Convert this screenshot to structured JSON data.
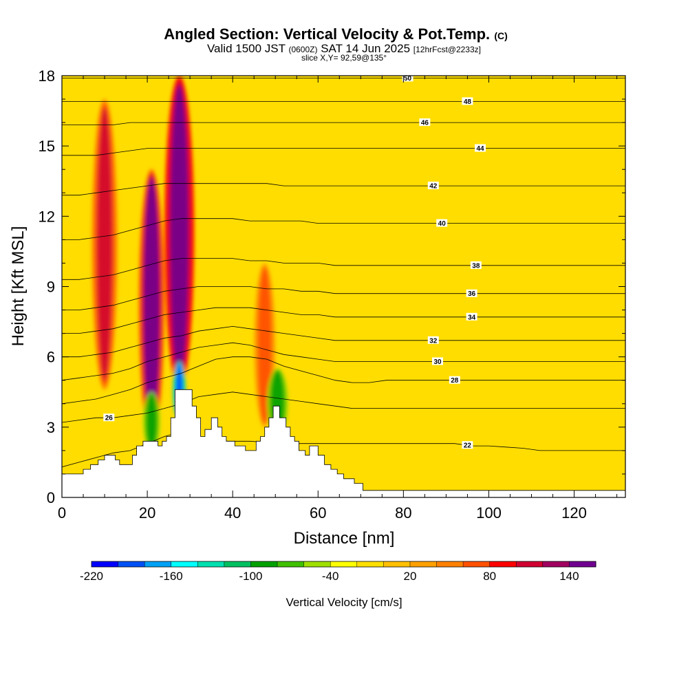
{
  "chart_data": {
    "type": "heatmap",
    "title": "Angled Section: Vertical Velocity & Pot.Temp.",
    "title_units": "(C)",
    "subtitle_main_1": "Valid 1500 JST",
    "subtitle_small_1": "(0600Z)",
    "subtitle_main_2": "SAT 14 Jun 2025",
    "subtitle_small_2": "[12hrFcst@2233z]",
    "subtitle_line2": "slice X,Y= 92,59@135°",
    "xlabel": "Distance [nm]",
    "ylabel": "Height [Kft MSL]",
    "xlim": [
      0,
      132
    ],
    "ylim": [
      0,
      18
    ],
    "x_ticks": [
      0,
      20,
      40,
      60,
      80,
      100,
      120
    ],
    "y_ticks": [
      0,
      3,
      6,
      9,
      12,
      15,
      18
    ],
    "terrain": [
      [
        0,
        0.6
      ],
      [
        0,
        1.0
      ],
      [
        5,
        1.0
      ],
      [
        5,
        1.2
      ],
      [
        6.7,
        1.2
      ],
      [
        6.7,
        1.4
      ],
      [
        8.5,
        1.4
      ],
      [
        8.5,
        1.6
      ],
      [
        10,
        1.6
      ],
      [
        10,
        1.8
      ],
      [
        12.5,
        1.8
      ],
      [
        12.5,
        1.6
      ],
      [
        13.5,
        1.6
      ],
      [
        13.5,
        1.4
      ],
      [
        16.5,
        1.4
      ],
      [
        16.5,
        1.8
      ],
      [
        17.5,
        1.8
      ],
      [
        17.5,
        2.2
      ],
      [
        19,
        2.2
      ],
      [
        19,
        2.4
      ],
      [
        22.5,
        2.4
      ],
      [
        22.5,
        2.2
      ],
      [
        23.5,
        2.2
      ],
      [
        23.5,
        2.4
      ],
      [
        24.5,
        2.4
      ],
      [
        24.5,
        2.6
      ],
      [
        25.5,
        2.6
      ],
      [
        25.5,
        3.4
      ],
      [
        26.5,
        3.4
      ],
      [
        26.5,
        4.6
      ],
      [
        30.5,
        4.6
      ],
      [
        30.5,
        3.9
      ],
      [
        31.5,
        3.9
      ],
      [
        31.5,
        3.4
      ],
      [
        32.5,
        3.4
      ],
      [
        32.5,
        2.6
      ],
      [
        33.5,
        2.6
      ],
      [
        33.5,
        2.9
      ],
      [
        35,
        2.9
      ],
      [
        35,
        3.4
      ],
      [
        36.5,
        3.4
      ],
      [
        36.5,
        3.0
      ],
      [
        37.5,
        3.0
      ],
      [
        37.5,
        2.6
      ],
      [
        38.5,
        2.6
      ],
      [
        38.5,
        2.4
      ],
      [
        40.5,
        2.4
      ],
      [
        40.5,
        2.2
      ],
      [
        43,
        2.2
      ],
      [
        43,
        2.0
      ],
      [
        45.5,
        2.0
      ],
      [
        45.5,
        2.4
      ],
      [
        46.5,
        2.4
      ],
      [
        46.5,
        2.6
      ],
      [
        47.5,
        2.6
      ],
      [
        47.5,
        3.0
      ],
      [
        48.5,
        3.0
      ],
      [
        48.5,
        3.4
      ],
      [
        49.5,
        3.4
      ],
      [
        49.5,
        3.9
      ],
      [
        51,
        3.9
      ],
      [
        51,
        3.4
      ],
      [
        52.5,
        3.4
      ],
      [
        52.5,
        3.0
      ],
      [
        53.5,
        3.0
      ],
      [
        53.5,
        2.6
      ],
      [
        54.5,
        2.6
      ],
      [
        54.5,
        2.4
      ],
      [
        55.5,
        2.4
      ],
      [
        55.5,
        2.0
      ],
      [
        57,
        2.0
      ],
      [
        57,
        1.8
      ],
      [
        58,
        1.8
      ],
      [
        58,
        2.2
      ],
      [
        60,
        2.2
      ],
      [
        60,
        1.8
      ],
      [
        61.5,
        1.8
      ],
      [
        61.5,
        1.4
      ],
      [
        63,
        1.4
      ],
      [
        63,
        1.2
      ],
      [
        64.5,
        1.2
      ],
      [
        64.5,
        1.0
      ],
      [
        66,
        1.0
      ],
      [
        66,
        0.8
      ],
      [
        68.5,
        0.8
      ],
      [
        68.5,
        0.6
      ],
      [
        70.5,
        0.6
      ],
      [
        70.5,
        0.3
      ],
      [
        132,
        0.3
      ],
      [
        132,
        0
      ],
      [
        0,
        0
      ]
    ],
    "isentropes": [
      {
        "value": 22,
        "y": [
          1.3,
          1.5,
          1.7,
          1.9,
          2.0,
          2.3,
          2.6,
          2.8,
          2.5,
          2.4,
          2.4,
          2.4,
          2.35,
          2.3,
          2.3,
          2.3,
          2.3,
          2.3,
          2.3,
          2.3,
          2.3,
          2.3,
          2.3,
          2.3,
          2.2,
          2.2,
          2.15,
          2.1,
          2.0,
          2.0,
          2.0,
          2.0,
          2.0,
          2.0
        ],
        "label_at_x": 95
      },
      {
        "value": 26,
        "y": [
          3.2,
          3.3,
          3.4,
          3.4,
          3.5,
          3.6,
          3.8,
          4.0,
          4.3,
          4.4,
          4.5,
          4.4,
          4.3,
          4.2,
          4.1,
          4.0,
          3.9,
          3.8,
          3.8,
          3.8,
          3.8,
          3.8,
          3.8,
          3.8,
          3.8,
          3.8,
          3.8,
          3.8,
          3.8,
          3.8,
          3.8,
          3.8,
          3.8,
          3.8
        ],
        "label_at_x": 11
      },
      {
        "value": 28,
        "y": [
          4.0,
          4.1,
          4.2,
          4.4,
          4.6,
          4.9,
          5.1,
          5.3,
          5.6,
          5.9,
          6.0,
          6.0,
          5.9,
          5.6,
          5.4,
          5.2,
          5.0,
          4.9,
          4.9,
          5.0,
          5.0,
          5.0,
          5.0,
          5.0,
          5.0,
          5.0,
          5.0,
          5.0,
          5.0,
          5.0,
          5.0,
          5.0,
          5.0,
          5.0
        ],
        "label_at_x": 92
      },
      {
        "value": 30,
        "y": [
          5.0,
          5.1,
          5.2,
          5.3,
          5.5,
          5.8,
          6.0,
          6.2,
          6.4,
          6.5,
          6.6,
          6.5,
          6.3,
          6.1,
          6.0,
          5.9,
          5.8,
          5.8,
          5.8,
          5.8,
          5.8,
          5.8,
          5.8,
          5.8,
          5.8,
          5.8,
          5.8,
          5.8,
          5.8,
          5.8,
          5.8,
          5.8,
          5.8,
          5.8
        ],
        "label_at_x": 88
      },
      {
        "value": 32,
        "y": [
          6.0,
          6.0,
          6.1,
          6.2,
          6.4,
          6.6,
          6.8,
          6.9,
          7.1,
          7.2,
          7.3,
          7.2,
          7.1,
          7.0,
          6.9,
          6.8,
          6.7,
          6.7,
          6.7,
          6.7,
          6.7,
          6.7,
          6.7,
          6.7,
          6.7,
          6.7,
          6.7,
          6.7,
          6.7,
          6.7,
          6.7,
          6.7,
          6.7,
          6.7
        ],
        "label_at_x": 87
      },
      {
        "value": 34,
        "y": [
          7.0,
          7.0,
          7.1,
          7.2,
          7.4,
          7.6,
          7.8,
          7.9,
          8.0,
          8.1,
          8.1,
          8.1,
          8.0,
          7.9,
          7.8,
          7.8,
          7.7,
          7.7,
          7.7,
          7.7,
          7.7,
          7.7,
          7.7,
          7.7,
          7.7,
          7.7,
          7.7,
          7.7,
          7.7,
          7.7,
          7.7,
          7.7,
          7.7,
          7.7
        ],
        "label_at_x": 96
      },
      {
        "value": 36,
        "y": [
          8.0,
          8.0,
          8.1,
          8.2,
          8.4,
          8.6,
          8.8,
          8.9,
          9.0,
          9.0,
          9.0,
          9.0,
          8.9,
          8.9,
          8.8,
          8.8,
          8.7,
          8.7,
          8.7,
          8.7,
          8.7,
          8.7,
          8.7,
          8.7,
          8.7,
          8.7,
          8.7,
          8.7,
          8.7,
          8.7,
          8.7,
          8.7,
          8.7,
          8.7
        ],
        "label_at_x": 96
      },
      {
        "value": 38,
        "y": [
          9.3,
          9.3,
          9.4,
          9.5,
          9.7,
          9.9,
          10.1,
          10.2,
          10.2,
          10.2,
          10.2,
          10.1,
          10.1,
          10.0,
          10.0,
          10.0,
          9.9,
          9.9,
          9.9,
          9.9,
          9.9,
          9.9,
          9.9,
          9.9,
          9.9,
          9.9,
          9.9,
          9.9,
          9.9,
          9.9,
          9.9,
          9.9,
          9.9,
          9.9
        ],
        "label_at_x": 97
      },
      {
        "value": 40,
        "y": [
          11.0,
          11.0,
          11.1,
          11.2,
          11.4,
          11.6,
          11.8,
          11.9,
          11.9,
          11.9,
          11.9,
          11.8,
          11.8,
          11.8,
          11.8,
          11.7,
          11.7,
          11.7,
          11.7,
          11.7,
          11.7,
          11.7,
          11.7,
          11.7,
          11.7,
          11.7,
          11.7,
          11.7,
          11.7,
          11.7,
          11.7,
          11.7,
          11.7,
          11.7
        ],
        "label_at_x": 89
      },
      {
        "value": 42,
        "y": [
          12.9,
          12.9,
          13.0,
          13.1,
          13.2,
          13.3,
          13.4,
          13.4,
          13.4,
          13.4,
          13.4,
          13.4,
          13.4,
          13.3,
          13.3,
          13.3,
          13.3,
          13.3,
          13.3,
          13.3,
          13.3,
          13.3,
          13.3,
          13.3,
          13.3,
          13.3,
          13.3,
          13.3,
          13.3,
          13.3,
          13.3,
          13.3,
          13.3,
          13.3
        ],
        "label_at_x": 87
      },
      {
        "value": 44,
        "y": [
          14.6,
          14.6,
          14.6,
          14.7,
          14.8,
          14.9,
          14.9,
          14.9,
          14.9,
          14.9,
          14.9,
          14.9,
          14.9,
          14.9,
          14.9,
          14.9,
          14.9,
          14.9,
          14.9,
          14.9,
          14.9,
          14.9,
          14.9,
          14.9,
          14.9,
          14.9,
          14.9,
          14.9,
          14.9,
          14.9,
          14.9,
          14.9,
          14.9,
          14.9
        ],
        "label_at_x": 98
      },
      {
        "value": 46,
        "y": [
          15.9,
          15.9,
          15.9,
          15.9,
          16.0,
          16.0,
          16.0,
          16.0,
          16.0,
          16.0,
          16.0,
          16.0,
          16.0,
          16.0,
          16.0,
          16.0,
          16.0,
          16.0,
          16.0,
          16.0,
          16.0,
          16.0,
          16.0,
          16.0,
          16.0,
          16.0,
          16.0,
          16.0,
          16.0,
          16.0,
          16.0,
          16.0,
          16.0,
          16.0
        ],
        "label_at_x": 85
      },
      {
        "value": 48,
        "y": [
          16.9,
          16.9,
          16.9,
          16.9,
          16.9,
          16.9,
          16.9,
          16.9,
          16.9,
          16.9,
          16.9,
          16.9,
          16.9,
          16.9,
          16.9,
          16.9,
          16.9,
          16.9,
          16.9,
          16.9,
          16.9,
          16.9,
          16.9,
          16.9,
          16.9,
          16.9,
          16.9,
          16.9,
          16.9,
          16.9,
          16.9,
          16.9,
          16.9,
          16.9
        ],
        "label_at_x": 95
      },
      {
        "value": 50,
        "y": [
          17.9,
          17.9,
          17.9,
          17.9,
          17.9,
          17.9,
          17.9,
          17.9,
          17.9,
          17.9,
          17.9,
          17.9,
          17.9,
          17.9,
          17.9,
          17.9,
          17.9,
          17.9,
          17.9,
          17.9,
          17.9,
          17.9,
          17.9,
          17.9,
          17.9,
          17.9,
          17.9,
          17.9,
          17.9,
          17.9,
          17.9,
          17.9,
          17.9,
          17.9
        ],
        "label_at_x": 81
      }
    ],
    "isentrope_x": [
      0,
      4,
      8,
      12,
      16,
      20,
      24,
      28,
      32,
      36,
      40,
      44,
      48,
      52,
      56,
      60,
      64,
      68,
      72,
      76,
      80,
      84,
      88,
      92,
      96,
      100,
      104,
      108,
      112,
      116,
      120,
      124,
      128,
      132
    ],
    "velocity_features": [
      {
        "kind": "updraft",
        "x": [
          7,
          13
        ],
        "y": [
          4.6,
          17.0
        ],
        "peak_cm_s": 100
      },
      {
        "kind": "updraft",
        "x": [
          18,
          24
        ],
        "y": [
          2.5,
          14.0
        ],
        "peak_cm_s": 140
      },
      {
        "kind": "updraft",
        "x": [
          24,
          31
        ],
        "y": [
          4.6,
          18.0
        ],
        "peak_cm_s": 150
      },
      {
        "kind": "downdraft",
        "x": [
          19,
          23
        ],
        "y": [
          2.0,
          4.5
        ],
        "peak_cm_s": -100
      },
      {
        "kind": "downdraft",
        "x": [
          26,
          29
        ],
        "y": [
          3.3,
          5.8
        ],
        "peak_cm_s": -200
      },
      {
        "kind": "updraft",
        "x": [
          45,
          50
        ],
        "y": [
          3.0,
          10.0
        ],
        "peak_cm_s": 70
      },
      {
        "kind": "downdraft",
        "x": [
          48,
          53
        ],
        "y": [
          2.6,
          5.5
        ],
        "peak_cm_s": -100
      }
    ],
    "colorbar": {
      "label": "Vertical Velocity [cm/s]",
      "tick_values": [
        -220,
        -160,
        -100,
        -40,
        20,
        80,
        140
      ],
      "tick_labels": [
        "-220",
        "-160",
        "-100",
        "-40",
        "20",
        "80",
        "140"
      ],
      "bins": [
        -220,
        -200,
        -180,
        -160,
        -140,
        -120,
        -100,
        -80,
        -60,
        -40,
        -20,
        0,
        20,
        40,
        60,
        80,
        100,
        120,
        140,
        160
      ],
      "colors": [
        "#0000ff",
        "#0050f5",
        "#00a0f5",
        "#00ffff",
        "#00e0b0",
        "#00c060",
        "#00a000",
        "#40c000",
        "#a0e000",
        "#ffff00",
        "#ffe000",
        "#ffc000",
        "#ffa000",
        "#ff8000",
        "#ff5000",
        "#ff0000",
        "#d00030",
        "#a00060",
        "#700090"
      ],
      "background_color": "#ffdd00"
    }
  }
}
